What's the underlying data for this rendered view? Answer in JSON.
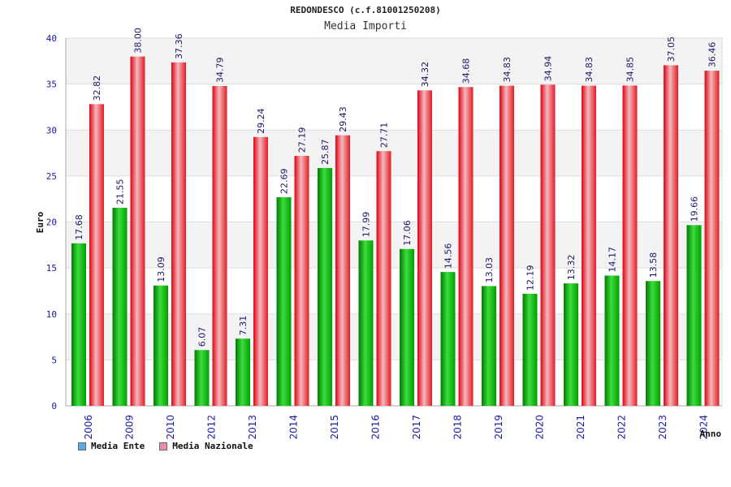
{
  "chart_data": {
    "type": "bar",
    "title": "REDONDESCO (c.f.81001250208)",
    "subtitle": "Media Importi",
    "ylabel": "Euro",
    "xlabel": "Anno",
    "ylim": [
      0,
      40
    ],
    "yticks": [
      0,
      5,
      10,
      15,
      20,
      25,
      30,
      35,
      40
    ],
    "categories": [
      "2006",
      "2009",
      "2010",
      "2012",
      "2013",
      "2014",
      "2015",
      "2016",
      "2017",
      "2018",
      "2019",
      "2020",
      "2021",
      "2022",
      "2023",
      "2024"
    ],
    "series": [
      {
        "name": "Media Ente",
        "color": "#0abf0a",
        "legend_color": "#5fa8e8",
        "values": [
          17.68,
          21.55,
          13.09,
          6.07,
          7.31,
          22.69,
          25.87,
          17.99,
          17.06,
          14.56,
          13.03,
          12.19,
          13.32,
          14.17,
          13.58,
          19.66
        ],
        "labels": [
          "17.68",
          "21.55",
          "13.09",
          "6.07",
          "7.31",
          "22.69",
          "25.87",
          "17.99",
          "17.06",
          "14.56",
          "13.03",
          "12.19",
          "13.32",
          "14.17",
          "13.58",
          "19.66"
        ]
      },
      {
        "name": "Media Nazionale",
        "color": "#ee1c25",
        "legend_color": "#e88fb0",
        "values": [
          32.82,
          38.0,
          37.36,
          34.79,
          29.24,
          27.19,
          29.43,
          27.71,
          34.32,
          34.68,
          34.83,
          34.94,
          34.83,
          34.85,
          37.05,
          36.46
        ],
        "labels": [
          "32.82",
          "38.00",
          "37.36",
          "34.79",
          "29.24",
          "27.19",
          "29.43",
          "27.71",
          "34.32",
          "34.68",
          "34.83",
          "34.94",
          "34.83",
          "34.85",
          "37.05",
          "36.46"
        ]
      }
    ]
  }
}
